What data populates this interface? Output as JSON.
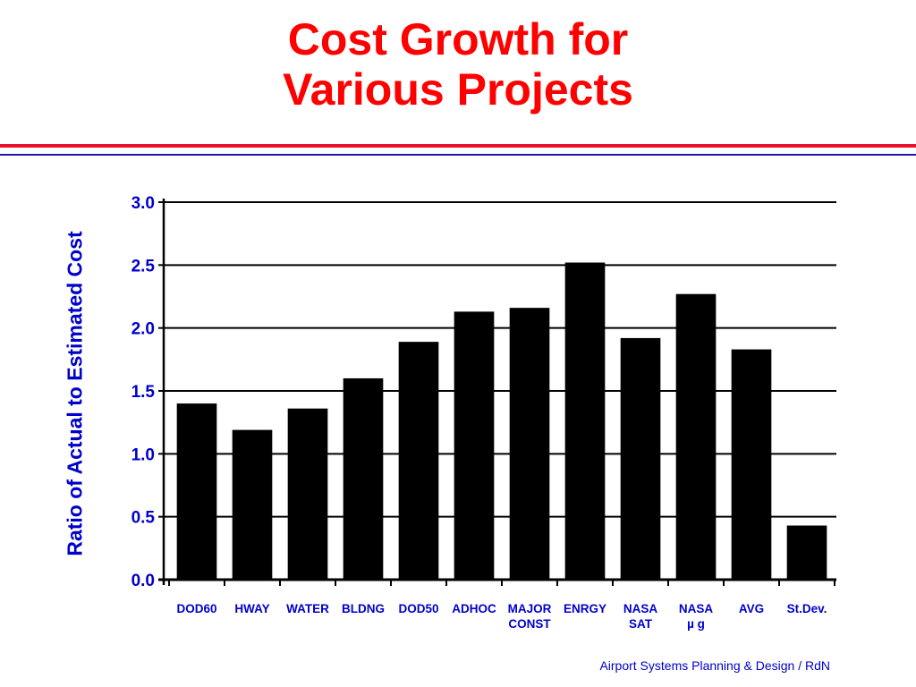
{
  "title": {
    "line1": "Cost Growth for",
    "line2": "Various Projects"
  },
  "footer": "Airport Systems Planning & Design / RdN",
  "colors": {
    "title": "#ff0000",
    "axis_text": "#0000cc",
    "bars": "#000000",
    "rule_red": "#e8112d",
    "rule_blue": "#1a1aa6"
  },
  "chart_data": {
    "type": "bar",
    "title": "Cost Growth for Various Projects",
    "ylabel": "Ratio of Actual to Estimated Cost",
    "xlabel": "",
    "ylim": [
      0,
      3.0
    ],
    "yticks": [
      "0.0",
      "0.5",
      "1.0",
      "1.5",
      "2.0",
      "2.5",
      "3.0"
    ],
    "grid": true,
    "categories": [
      [
        "DOD60"
      ],
      [
        "HWAY"
      ],
      [
        "WATER"
      ],
      [
        "BLDNG"
      ],
      [
        "DOD50"
      ],
      [
        "ADHOC"
      ],
      [
        "MAJOR",
        "CONST"
      ],
      [
        "ENRGY"
      ],
      [
        "NASA",
        "SAT"
      ],
      [
        "NASA",
        "µ g"
      ],
      [
        "AVG"
      ],
      [
        "St.Dev."
      ]
    ],
    "values": [
      1.4,
      1.19,
      1.36,
      1.6,
      1.89,
      2.13,
      2.16,
      2.52,
      1.92,
      2.27,
      1.83,
      0.43
    ]
  }
}
